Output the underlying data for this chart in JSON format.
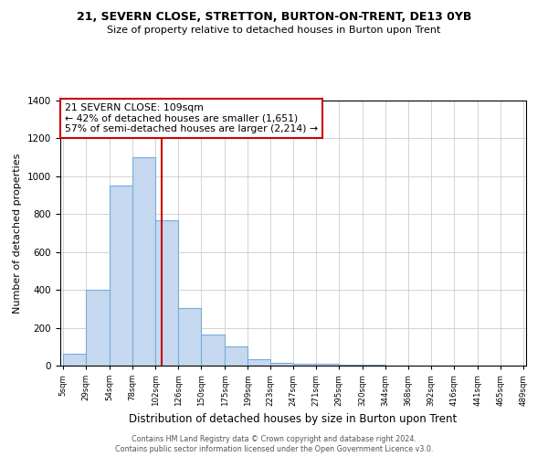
{
  "title1": "21, SEVERN CLOSE, STRETTON, BURTON-ON-TRENT, DE13 0YB",
  "title2": "Size of property relative to detached houses in Burton upon Trent",
  "xlabel": "Distribution of detached houses by size in Burton upon Trent",
  "ylabel": "Number of detached properties",
  "bin_edges": [
    5,
    29,
    54,
    78,
    102,
    126,
    150,
    175,
    199,
    223,
    247,
    271,
    295,
    320,
    344,
    368,
    392,
    416,
    441,
    465,
    489
  ],
  "bin_counts": [
    65,
    400,
    950,
    1100,
    770,
    305,
    165,
    100,
    35,
    15,
    10,
    8,
    5,
    3,
    2,
    1,
    1,
    1,
    1,
    1
  ],
  "bar_facecolor": "#c5d8f0",
  "bar_edgecolor": "#7aabda",
  "property_line_x": 109,
  "property_line_color": "#cc0000",
  "annotation_title": "21 SEVERN CLOSE: 109sqm",
  "annotation_line1": "← 42% of detached houses are smaller (1,651)",
  "annotation_line2": "57% of semi-detached houses are larger (2,214) →",
  "annotation_box_edgecolor": "#cc0000",
  "ylim": [
    0,
    1400
  ],
  "yticks": [
    0,
    200,
    400,
    600,
    800,
    1000,
    1200,
    1400
  ],
  "tick_labels": [
    "5sqm",
    "29sqm",
    "54sqm",
    "78sqm",
    "102sqm",
    "126sqm",
    "150sqm",
    "175sqm",
    "199sqm",
    "223sqm",
    "247sqm",
    "271sqm",
    "295sqm",
    "320sqm",
    "344sqm",
    "368sqm",
    "392sqm",
    "416sqm",
    "441sqm",
    "465sqm",
    "489sqm"
  ],
  "footnote1": "Contains HM Land Registry data © Crown copyright and database right 2024.",
  "footnote2": "Contains public sector information licensed under the Open Government Licence v3.0.",
  "bg_color": "#ffffff",
  "grid_color": "#cccccc"
}
